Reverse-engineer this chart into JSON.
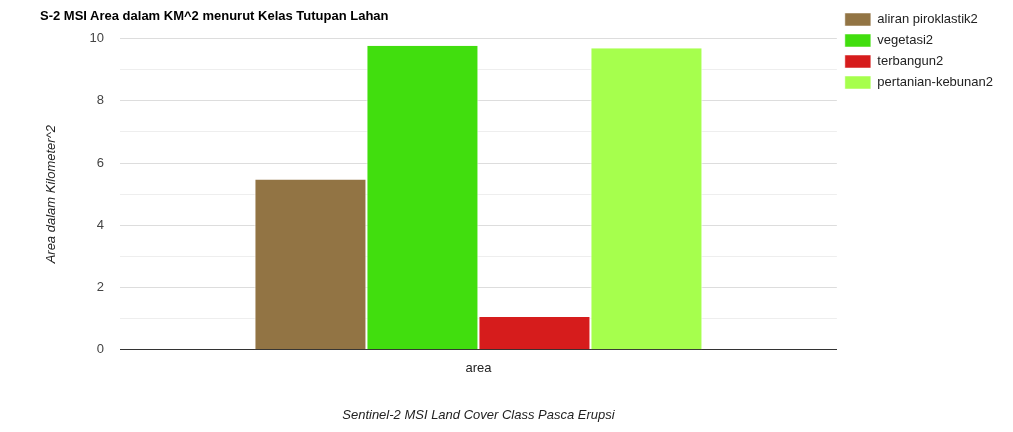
{
  "chart_data": {
    "type": "bar",
    "title": "S-2 MSI Area dalam KM^2 menurut Kelas Tutupan Lahan",
    "xlabel": "Sentinel-2 MSI Land Cover Class Pasca Erupsi",
    "ylabel": "Area dalam Kilometer^2",
    "categories": [
      "area"
    ],
    "series": [
      {
        "name": "aliran piroklastik2",
        "color": "#927444",
        "values": [
          5.47
        ]
      },
      {
        "name": "vegetasi2",
        "color": "#41de0e",
        "values": [
          9.77
        ]
      },
      {
        "name": "terbangun2",
        "color": "#d61c1c",
        "values": [
          1.05
        ]
      },
      {
        "name": "pertanian-kebunan2",
        "color": "#a6ff4d",
        "values": [
          9.69
        ]
      }
    ],
    "ylim": [
      0,
      10
    ],
    "yticks": [
      0,
      {
        "value": 1,
        "label": null
      },
      2,
      {
        "value": 3,
        "label": null
      },
      4,
      {
        "value": 5,
        "label": null
      },
      6,
      {
        "value": 7,
        "label": null
      },
      8,
      {
        "value": 9,
        "label": null
      },
      10
    ],
    "grid": "y",
    "legend": "top right"
  }
}
